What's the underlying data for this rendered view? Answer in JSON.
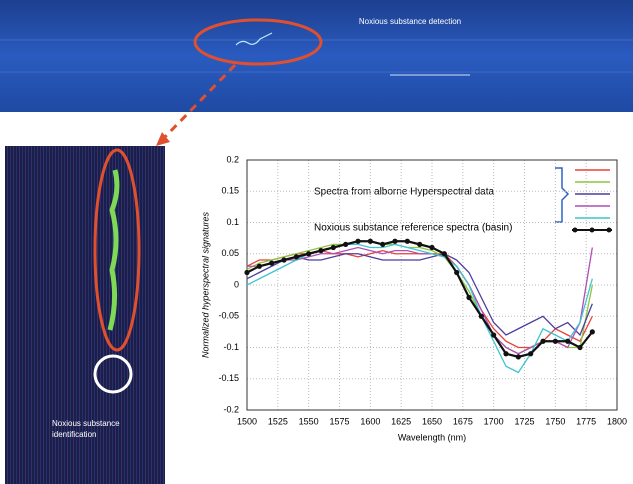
{
  "images": {
    "detection_label": "Noxious substance detection",
    "identification_label": "Noxious substance identification"
  },
  "chart_data": {
    "type": "line",
    "y_label": "Normalized hyperspectral signatures",
    "x_label": "Wavelength (nm)",
    "x": [
      1500,
      1510,
      1520,
      1530,
      1540,
      1550,
      1560,
      1570,
      1580,
      1590,
      1600,
      1610,
      1620,
      1630,
      1640,
      1650,
      1660,
      1670,
      1680,
      1690,
      1700,
      1710,
      1720,
      1730,
      1740,
      1750,
      1760,
      1770,
      1780
    ],
    "series_group": {
      "name": "Spectra from alborne Hyperspectral data",
      "series": [
        {
          "color": "#e8413a",
          "values": [
            0.03,
            0.04,
            0.04,
            0.045,
            0.05,
            0.05,
            0.055,
            0.05,
            0.05,
            0.045,
            0.05,
            0.055,
            0.05,
            0.05,
            0.05,
            0.05,
            0.05,
            0.03,
            0.0,
            -0.04,
            -0.07,
            -0.09,
            -0.1,
            -0.1,
            -0.09,
            -0.07,
            -0.08,
            -0.09,
            -0.05
          ]
        },
        {
          "color": "#8cc63f",
          "values": [
            0.025,
            0.035,
            0.04,
            0.045,
            0.05,
            0.055,
            0.06,
            0.065,
            0.065,
            0.07,
            0.07,
            0.065,
            0.065,
            0.06,
            0.06,
            0.055,
            0.045,
            0.02,
            -0.01,
            -0.05,
            -0.08,
            -0.1,
            -0.11,
            -0.1,
            -0.09,
            -0.09,
            -0.1,
            -0.1,
            0.0
          ]
        },
        {
          "color": "#4b3f9e",
          "values": [
            0.01,
            0.02,
            0.03,
            0.04,
            0.045,
            0.04,
            0.04,
            0.045,
            0.05,
            0.05,
            0.045,
            0.04,
            0.04,
            0.04,
            0.04,
            0.045,
            0.05,
            0.04,
            0.02,
            -0.02,
            -0.06,
            -0.08,
            -0.07,
            -0.06,
            -0.05,
            -0.07,
            -0.06,
            -0.08,
            -0.03
          ]
        },
        {
          "color": "#b04fb5",
          "values": [
            0.03,
            0.03,
            0.035,
            0.04,
            0.04,
            0.045,
            0.05,
            0.05,
            0.055,
            0.06,
            0.055,
            0.05,
            0.055,
            0.055,
            0.05,
            0.05,
            0.045,
            0.03,
            0.0,
            -0.04,
            -0.08,
            -0.1,
            -0.11,
            -0.1,
            -0.09,
            -0.09,
            -0.1,
            -0.06,
            0.06
          ]
        },
        {
          "color": "#3fc4cf",
          "values": [
            0.0,
            0.01,
            0.02,
            0.03,
            0.04,
            0.05,
            0.055,
            0.06,
            0.065,
            0.065,
            0.06,
            0.06,
            0.065,
            0.06,
            0.055,
            0.05,
            0.045,
            0.03,
            0.0,
            -0.05,
            -0.09,
            -0.13,
            -0.14,
            -0.11,
            -0.07,
            -0.08,
            -0.09,
            -0.06,
            0.01
          ]
        }
      ]
    },
    "reference": {
      "name": "Noxious substance reference spectra (basin)",
      "color": "#111111",
      "values": [
        0.02,
        0.03,
        0.035,
        0.04,
        0.045,
        0.05,
        0.055,
        0.06,
        0.065,
        0.07,
        0.07,
        0.065,
        0.07,
        0.07,
        0.065,
        0.06,
        0.05,
        0.02,
        -0.02,
        -0.05,
        -0.08,
        -0.11,
        -0.115,
        -0.11,
        -0.09,
        -0.09,
        -0.09,
        -0.1,
        -0.075
      ]
    },
    "xlim": [
      1500,
      1800
    ],
    "xticks": [
      1500,
      1525,
      1550,
      1575,
      1600,
      1625,
      1650,
      1675,
      1700,
      1725,
      1750,
      1775,
      1800
    ],
    "ylim": [
      -0.2,
      0.2
    ],
    "yticks": [
      -0.2,
      -0.15,
      -0.1,
      -0.05,
      0,
      0.05,
      0.1,
      0.15,
      0.2
    ],
    "grid": true
  }
}
